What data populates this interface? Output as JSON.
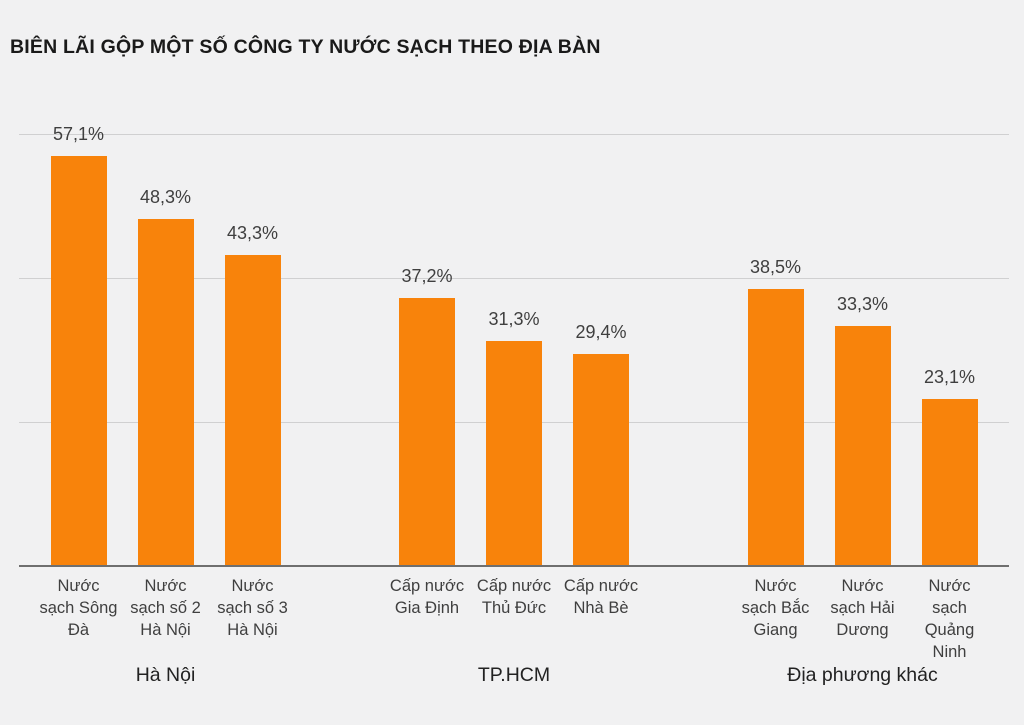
{
  "title": "BIÊN LÃI GỘP MỘT SỐ CÔNG TY NƯỚC SẠCH THEO ĐỊA BÀN",
  "colors": {
    "bar": "#F8830B",
    "background": "#F1F1F2",
    "gridline": "#D0D0D1",
    "axis_line": "#6F6F6F",
    "value_label_text": "#3F3F3F",
    "category_label_text": "#3F3F3F",
    "title_text": "#1A1A1A"
  },
  "chart_data": {
    "type": "bar",
    "title": "BIÊN LÃI GỘP MỘT SỐ CÔNG TY NƯỚC SẠCH THEO ĐỊA BÀN",
    "unit": "%",
    "ylim": [
      0,
      60
    ],
    "gridlines": [
      20,
      40,
      60
    ],
    "grid": "horizontal lines only, no y-axis tick labels",
    "legend": "none",
    "bar_color": "#F8830B",
    "groups": [
      {
        "label": "Hà Nội",
        "bars": [
          {
            "company": "Nước sạch Sông Đà",
            "label_lines": "Nước\nsạch Sông\nĐà",
            "value": 57.1,
            "value_label": "57,1%"
          },
          {
            "company": "Nước sạch số 2 Hà Nội",
            "label_lines": "Nước\nsạch số 2\nHà Nội",
            "value": 48.3,
            "value_label": "48,3%"
          },
          {
            "company": "Nước sạch số 3 Hà Nội",
            "label_lines": "Nước\nsạch số 3\nHà Nội",
            "value": 43.3,
            "value_label": "43,3%"
          }
        ]
      },
      {
        "label": "TP.HCM",
        "bars": [
          {
            "company": "Cấp nước Gia Định",
            "label_lines": "Cấp nước\nGia Định",
            "value": 37.2,
            "value_label": "37,2%"
          },
          {
            "company": "Cấp nước Thủ Đức",
            "label_lines": "Cấp nước\nThủ Đức",
            "value": 31.3,
            "value_label": "31,3%"
          },
          {
            "company": "Cấp nước Nhà Bè",
            "label_lines": "Cấp nước\nNhà Bè",
            "value": 29.4,
            "value_label": "29,4%"
          }
        ]
      },
      {
        "label": "Địa phương khác",
        "bars": [
          {
            "company": "Nước sạch Bắc Giang",
            "label_lines": "Nước\nsạch Bắc\nGiang",
            "value": 38.5,
            "value_label": "38,5%"
          },
          {
            "company": "Nước sạch Hải Dương",
            "label_lines": "Nước\nsạch Hải\nDương",
            "value": 33.3,
            "value_label": "33,3%"
          },
          {
            "company": "Nước sạch Quảng Ninh",
            "label_lines": "Nước\nsạch\nQuảng\nNinh",
            "value": 23.1,
            "value_label": "23,1%"
          }
        ]
      }
    ]
  }
}
